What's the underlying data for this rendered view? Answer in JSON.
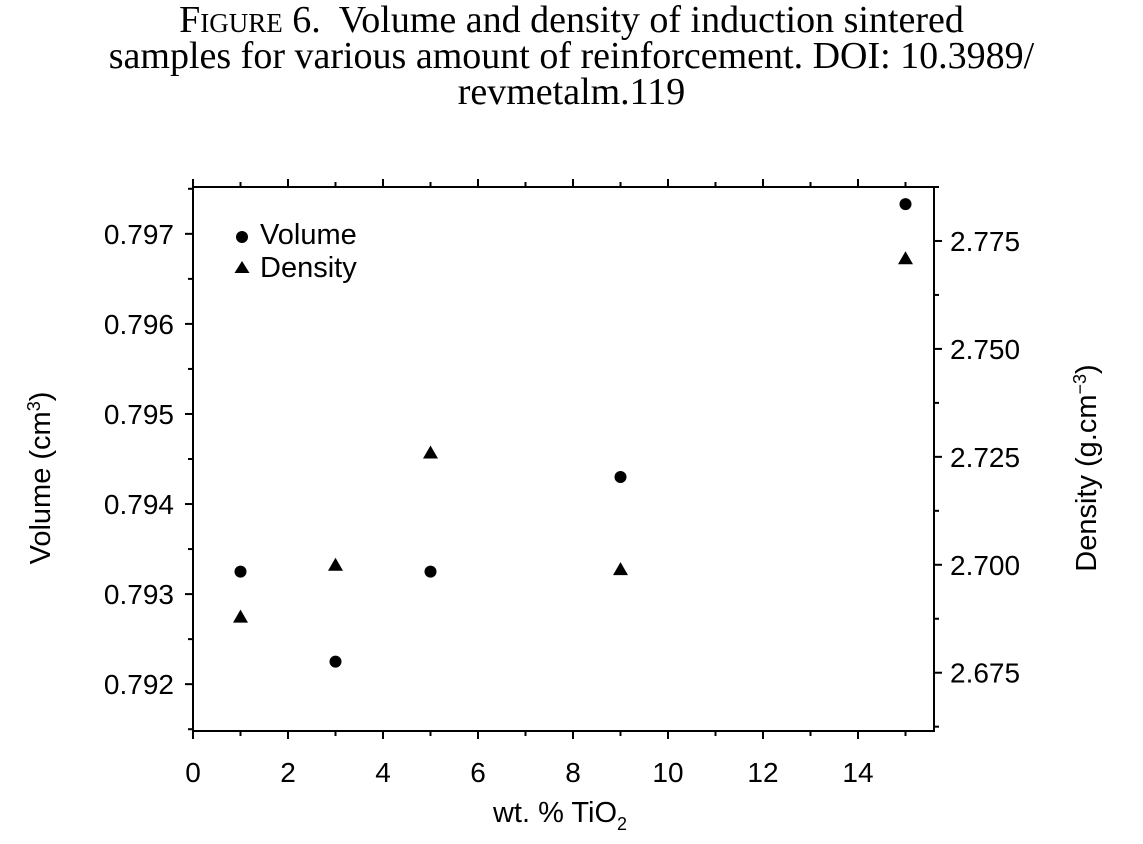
{
  "caption": {
    "label": "Figure 6.",
    "line1": "Volume and density of induction sintered",
    "line2": "samples for various amount of reinforcement. DOI: 10.3989/",
    "line3": "revmetalm.119"
  },
  "chart_data": {
    "type": "scatter",
    "title": "",
    "xlabel": "wt. % TiO",
    "xlabel_sub": "2",
    "ylabel_left": "Volume (cm",
    "ylabel_left_sup": "3",
    "ylabel_left_end": ")",
    "ylabel_right": "Density (g.cm",
    "ylabel_right_sup": "−3",
    "ylabel_right_end": ")",
    "xlim": [
      0,
      15.6
    ],
    "ylim_left": [
      0.79148,
      0.79752
    ],
    "ylim_right": [
      2.6615,
      2.7875
    ],
    "x_ticks": [
      0,
      2,
      4,
      6,
      8,
      10,
      12,
      14
    ],
    "x_tick_labels": [
      "0",
      "2",
      "4",
      "6",
      "8",
      "10",
      "12",
      "14"
    ],
    "y_left_ticks": [
      0.792,
      0.793,
      0.794,
      0.795,
      0.796,
      0.797
    ],
    "y_left_tick_labels": [
      "0.792",
      "0.793",
      "0.794",
      "0.795",
      "0.796",
      "0.797"
    ],
    "y_right_ticks": [
      2.675,
      2.7,
      2.725,
      2.75,
      2.775
    ],
    "y_right_tick_labels": [
      "2.675",
      "2.700",
      "2.725",
      "2.750",
      "2.775"
    ],
    "grid": false,
    "legend_position": "top-left",
    "series": [
      {
        "name": "Volume",
        "axis": "left",
        "marker": "circle",
        "points": [
          {
            "x": 1,
            "y": 0.79325
          },
          {
            "x": 3,
            "y": 0.79225
          },
          {
            "x": 5,
            "y": 0.79325
          },
          {
            "x": 9,
            "y": 0.7943
          },
          {
            "x": 15,
            "y": 0.79733
          }
        ]
      },
      {
        "name": "Density",
        "axis": "right",
        "marker": "triangle",
        "points": [
          {
            "x": 1,
            "y": 2.688
          },
          {
            "x": 3,
            "y": 2.7
          },
          {
            "x": 5,
            "y": 2.726
          },
          {
            "x": 9,
            "y": 2.699
          },
          {
            "x": 15,
            "y": 2.771
          }
        ]
      }
    ],
    "colors": {
      "axis": "#000000",
      "marker": "#000000"
    }
  }
}
